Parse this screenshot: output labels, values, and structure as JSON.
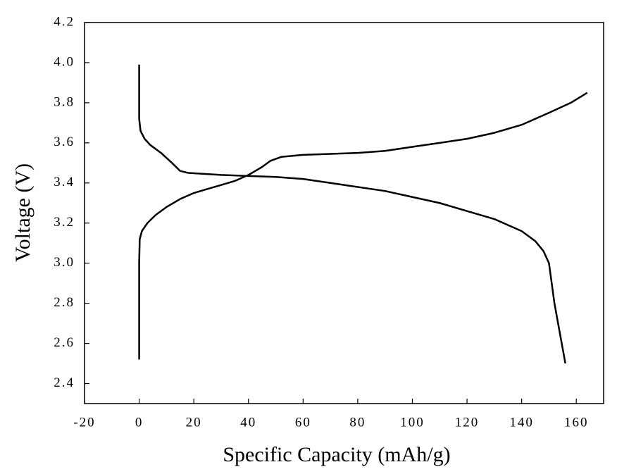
{
  "chart_data": {
    "type": "line",
    "xlabel": "Specific Capacity (mAh/g)",
    "ylabel": "Voltage (V)",
    "xlim": [
      -20,
      170
    ],
    "ylim": [
      2.3,
      4.2
    ],
    "xticks": [
      -20,
      0,
      20,
      40,
      60,
      80,
      100,
      120,
      140,
      160
    ],
    "yticks": [
      2.4,
      2.6,
      2.8,
      {
        "value": 3,
        "label": "3.0"
      },
      3.2,
      3.4,
      3.6,
      3.8,
      {
        "value": 4,
        "label": "4.0"
      },
      4.2
    ],
    "series": [
      {
        "color": "#000000",
        "x": [
          0,
          0,
          0.2,
          1,
          3,
          6,
          10,
          15,
          20,
          25,
          30,
          35,
          40,
          45,
          48,
          52,
          60,
          70,
          80,
          90,
          100,
          110,
          120,
          130,
          140,
          150,
          158,
          164
        ],
        "values": [
          2.52,
          3.0,
          3.12,
          3.16,
          3.2,
          3.24,
          3.28,
          3.32,
          3.35,
          3.37,
          3.39,
          3.41,
          3.44,
          3.48,
          3.51,
          3.53,
          3.54,
          3.545,
          3.55,
          3.56,
          3.58,
          3.6,
          3.62,
          3.65,
          3.69,
          3.75,
          3.8,
          3.85
        ]
      },
      {
        "color": "#000000",
        "x": [
          0,
          0,
          0.5,
          2,
          4,
          8,
          12,
          15,
          18,
          30,
          40,
          50,
          60,
          70,
          80,
          90,
          100,
          110,
          120,
          130,
          140,
          145,
          148,
          150,
          152,
          154,
          156
        ],
        "values": [
          3.99,
          3.72,
          3.66,
          3.62,
          3.59,
          3.55,
          3.5,
          3.46,
          3.45,
          3.44,
          3.435,
          3.43,
          3.42,
          3.4,
          3.38,
          3.36,
          3.33,
          3.3,
          3.26,
          3.22,
          3.16,
          3.11,
          3.06,
          3.0,
          2.8,
          2.65,
          2.5
        ]
      }
    ]
  }
}
